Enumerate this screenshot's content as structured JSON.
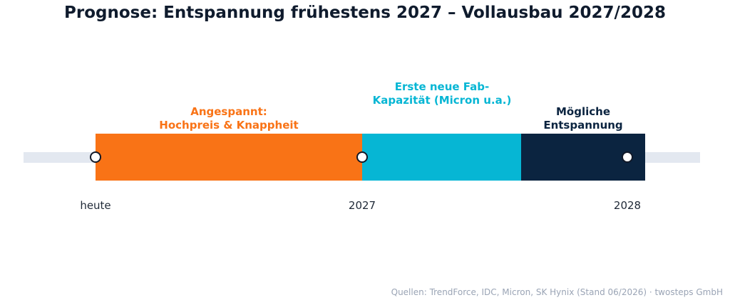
{
  "title": "Prognose: Entspannung frühestens 2027 – Vollausbau 2027/2028",
  "phases": [
    {
      "lines": [
        "Angespannt:",
        "Hochpreis & Knappheit"
      ],
      "color": "#f97316"
    },
    {
      "lines": [
        "Erste neue Fab-",
        "Kapazität (Micron u.a.)"
      ],
      "color": "#06b6d4"
    },
    {
      "lines": [
        "Mögliche",
        "Entspannung"
      ],
      "color": "#0b2440"
    }
  ],
  "ticks": [
    "heute",
    "2027",
    "2028"
  ],
  "source": "Quellen: TrendForce, IDC, Micron, SK Hynix (Stand 06/2026) · twosteps GmbH"
}
